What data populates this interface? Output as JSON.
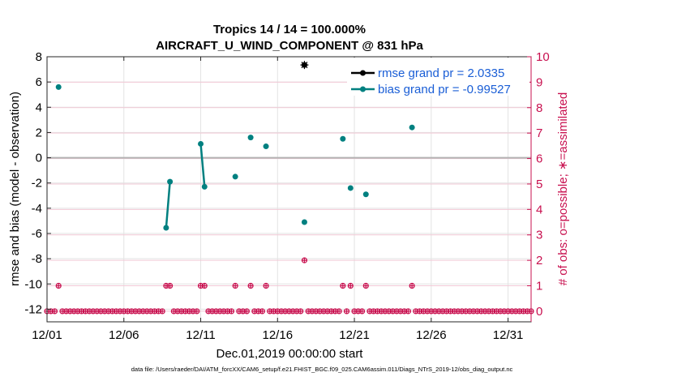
{
  "chart_data": {
    "type": "line",
    "title": "Tropics 14 / 14 = 100.000%",
    "subtitle": "AIRCRAFT_U_WIND_COMPONENT @ 831 hPa",
    "xlabel": "Dec.01,2019 00:00:00 start",
    "ylabel_left": "rmse and bias (model - observation)",
    "ylabel_right": "# of obs: o=possible; ∗=assimilated",
    "footnote": "data file: /Users/raeder/DAI/ATM_forcXX/CAM6_setup/f.e21.FHIST_BGC.f09_025.CAM6assim.011/Diags_NTrS_2019-12/obs_diag_output.nc",
    "xlim": [
      1,
      32.5
    ],
    "ylim_left": [
      -13,
      8
    ],
    "ylim_right": [
      -0.4167,
      10
    ],
    "x_ticks": [
      1,
      6,
      11,
      16,
      21,
      26,
      31
    ],
    "x_tick_labels": [
      "12/01",
      "12/06",
      "12/11",
      "12/16",
      "12/21",
      "12/26",
      "12/31"
    ],
    "y_ticks_left": [
      8,
      6,
      4,
      2,
      0,
      -2,
      -4,
      -6,
      -8,
      -10,
      -12
    ],
    "y_ticks_right": [
      10,
      9,
      8,
      7,
      6,
      5,
      4,
      3,
      2,
      1,
      0
    ],
    "grid": true,
    "zero_line": 0,
    "legend": {
      "position": "top-right",
      "entries": [
        {
          "label": "rmse grand pr = 2.0335",
          "color": "#000000"
        },
        {
          "label": "bias grand pr = -0.99527",
          "color": "#008080"
        }
      ]
    },
    "series": [
      {
        "name": "rmse grand pr = 2.0335",
        "color": "#000000",
        "axis": "left",
        "points": [
          [
            17.75,
            7.35
          ]
        ]
      },
      {
        "name": "bias grand pr = -0.99527",
        "color": "#008080",
        "axis": "left",
        "segments": [
          [
            [
              1.75,
              5.6
            ]
          ],
          [
            [
              8.75,
              -5.55
            ],
            [
              9.0,
              -1.9
            ]
          ],
          [
            [
              11.0,
              1.1
            ],
            [
              11.25,
              -2.3
            ]
          ],
          [
            [
              13.25,
              -1.5
            ]
          ],
          [
            [
              14.25,
              1.6
            ]
          ],
          [
            [
              15.25,
              0.9
            ]
          ],
          [
            [
              17.75,
              -5.1
            ]
          ],
          [
            [
              20.25,
              1.5
            ]
          ],
          [
            [
              20.75,
              -2.4
            ]
          ],
          [
            [
              21.75,
              -2.9
            ]
          ],
          [
            [
              24.75,
              2.4
            ]
          ]
        ]
      },
      {
        "name": "# of obs possible/assimilated",
        "color": "#c8104f",
        "axis": "right",
        "nonzero_points": [
          [
            1.75,
            1
          ],
          [
            8.75,
            1
          ],
          [
            9.0,
            1
          ],
          [
            11.0,
            1
          ],
          [
            11.25,
            1
          ],
          [
            13.25,
            1
          ],
          [
            14.25,
            1
          ],
          [
            15.25,
            1
          ],
          [
            17.75,
            2
          ],
          [
            20.25,
            1
          ],
          [
            20.75,
            1
          ],
          [
            21.75,
            1
          ],
          [
            24.75,
            1
          ]
        ],
        "zero_x_start": 1.0,
        "zero_x_end": 32.5,
        "zero_x_step": 0.25,
        "gap_x": [
          1.75,
          8.75,
          9.0,
          11.0,
          11.25,
          13.25,
          14.25,
          15.25,
          17.75,
          20.25,
          20.75,
          21.75,
          24.75
        ]
      }
    ]
  }
}
